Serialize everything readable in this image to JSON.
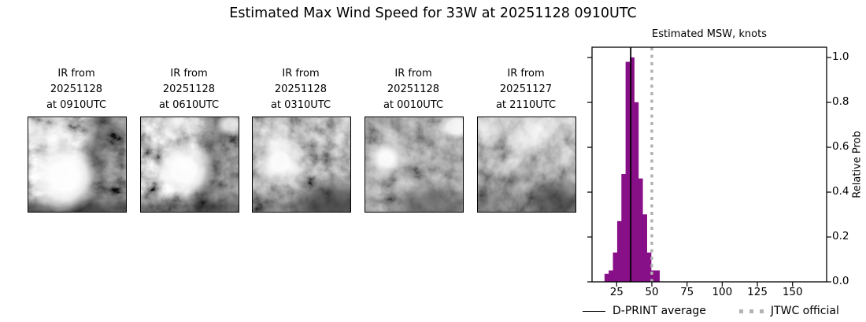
{
  "title": "Estimated Max Wind Speed for 33W at 20251128 0910UTC",
  "ir_images": [
    {
      "label_lines": [
        "IR from",
        "20251128",
        "at 0910UTC"
      ]
    },
    {
      "label_lines": [
        "IR from",
        "20251128",
        "at 0610UTC"
      ]
    },
    {
      "label_lines": [
        "IR from",
        "20251128",
        "at 0310UTC"
      ]
    },
    {
      "label_lines": [
        "IR from",
        "20251128",
        "at 0010UTC"
      ]
    },
    {
      "label_lines": [
        "IR from",
        "20251127",
        "at 2110UTC"
      ]
    }
  ],
  "chart_data": {
    "type": "bar",
    "title": "Estimated MSW, knots",
    "ylabel": "Relative Prob",
    "bin_start": 16.5,
    "bin_width": 3,
    "values": [
      0.035,
      0.05,
      0.13,
      0.27,
      0.48,
      0.98,
      1.0,
      0.8,
      0.46,
      0.3,
      0.13,
      0.05,
      0.05
    ],
    "xticks": [
      25,
      50,
      75,
      100,
      125,
      150
    ],
    "yticks": [
      0.0,
      0.2,
      0.4,
      0.6,
      0.8,
      1.0
    ],
    "xlim": [
      7.5,
      174.2
    ],
    "ylim": [
      0,
      1.046
    ],
    "grid": false,
    "legend_position": "bottom",
    "dprint_average": 35,
    "jtwc_official": 50,
    "bar_color": "#870f87",
    "dprint_line_color": "#000000",
    "jtwc_line_color": "#b2b2b2"
  },
  "legend": {
    "dprint_label": "D-PRINT average",
    "jtwc_label": "JTWC official"
  }
}
